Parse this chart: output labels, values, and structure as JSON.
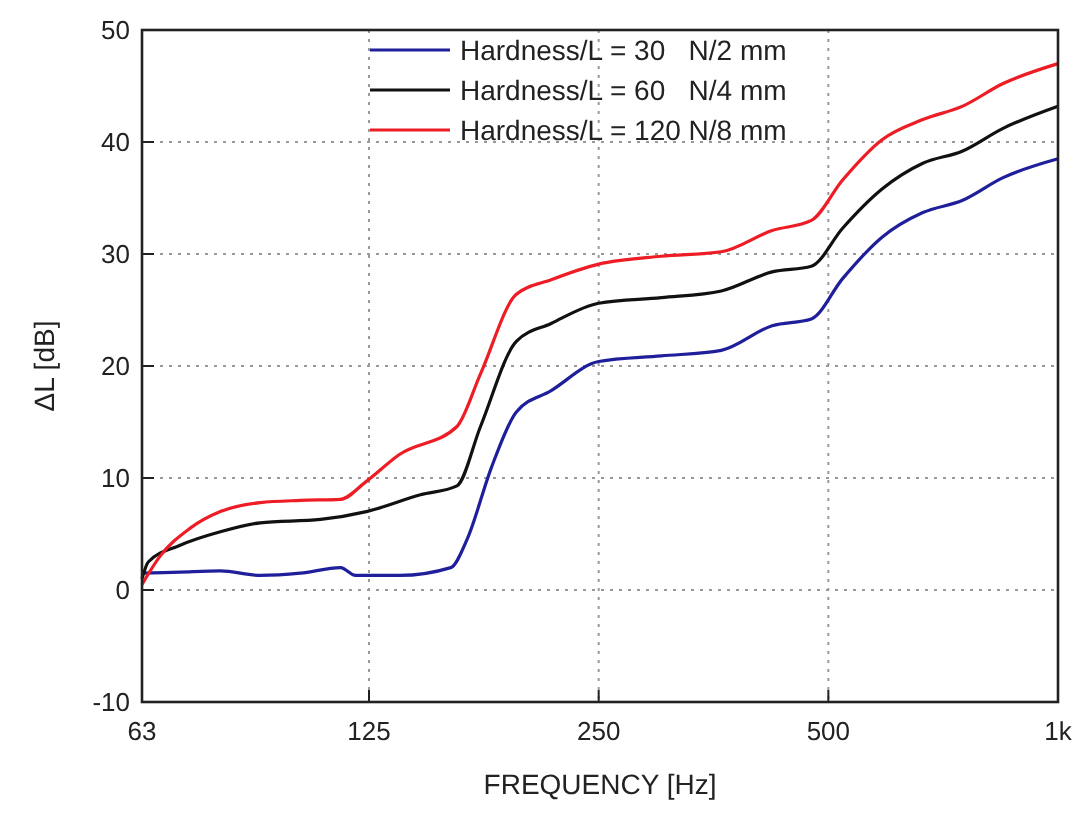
{
  "chart_data": {
    "type": "line",
    "xlabel": "FREQUENCY [Hz]",
    "ylabel": "ΔL [dB]",
    "log": "x",
    "grid": true,
    "legend": "top",
    "line_style": "solid",
    "marker": "none",
    "xlim": [
      63,
      1000
    ],
    "xticks": [
      63,
      125,
      250,
      500,
      {
        "value": 1000,
        "label": "1k"
      }
    ],
    "ylim": [
      -10,
      50
    ],
    "yticks": [
      -10,
      0,
      10,
      20,
      30,
      40,
      50
    ],
    "series": [
      {
        "name": "Hardness/L = 30   N/2 mm",
        "color": "#1f1f9c",
        "x": [
          63,
          70.7,
          79.8,
          90,
          101.6,
          114.7,
          120,
          137,
          160,
          168,
          181,
          195,
          216.6,
          250,
          302,
          362,
          422,
          475,
          522,
          588,
          665,
          750,
          846,
          1000
        ],
        "values": [
          1.5,
          1.6,
          1.7,
          1.3,
          1.5,
          2.0,
          1.3,
          1.3,
          2.0,
          4.5,
          11,
          15.9,
          17.8,
          20.4,
          20.9,
          21.4,
          23.6,
          24.2,
          27.8,
          31.5,
          33.7,
          34.8,
          36.8,
          38.5
        ]
      },
      {
        "name": "Hardness/L = 60   N/4 mm",
        "color": "#111111",
        "x": [
          63,
          64.2,
          70.7,
          79.8,
          90,
          108,
          124,
          146,
          163,
          175,
          195,
          216.6,
          250,
          302,
          362,
          422,
          475,
          522,
          588,
          665,
          750,
          846,
          1000
        ],
        "values": [
          1.0,
          2.5,
          4.0,
          5.2,
          6.0,
          6.3,
          7.0,
          8.5,
          9.3,
          14.6,
          22.2,
          23.8,
          25.6,
          26.1,
          26.7,
          28.4,
          28.9,
          32.3,
          35.8,
          38.1,
          39.2,
          41.2,
          43.2
        ]
      },
      {
        "name": "Hardness/L = 120 N/8 mm",
        "color": "#ee1c24",
        "x": [
          63,
          66.5,
          72.8,
          79.8,
          90,
          101.6,
          114.7,
          124,
          137,
          163,
          175,
          195,
          216.6,
          250,
          302,
          362,
          422,
          475,
          522,
          588,
          665,
          750,
          846,
          1000
        ],
        "values": [
          0.5,
          3.0,
          5.5,
          7.0,
          7.8,
          8.0,
          8.1,
          9.7,
          12.1,
          14.6,
          19.3,
          26.4,
          27.7,
          29.1,
          29.8,
          30.2,
          32.1,
          33.0,
          36.6,
          40.2,
          42.0,
          43.2,
          45.2,
          47.0
        ]
      }
    ]
  }
}
